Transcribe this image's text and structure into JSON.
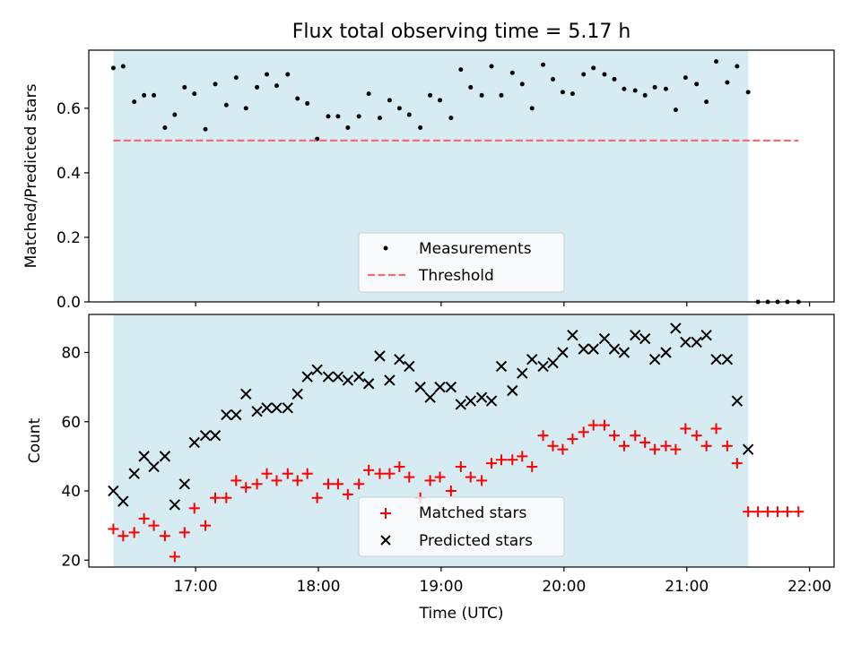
{
  "chart_data": [
    {
      "type": "scatter",
      "title": "Flux total observing time = 5.17 h",
      "ylabel": "Matched/Predicted stars",
      "xlabel": "",
      "xlim": [
        16.13,
        22.2
      ],
      "ylim": [
        0.0,
        0.78
      ],
      "yticks": [
        "0.0",
        "0.2",
        "0.4",
        "0.6"
      ],
      "ytick_values": [
        0.0,
        0.2,
        0.4,
        0.6
      ],
      "shaded_span": [
        16.33,
        21.5
      ],
      "legend_position": "lower center",
      "series": [
        {
          "name": "Measurements",
          "marker": "dot",
          "color": "#000000",
          "x": [
            16.33,
            16.41,
            16.5,
            16.58,
            16.66,
            16.75,
            16.83,
            16.91,
            16.99,
            17.08,
            17.16,
            17.25,
            17.33,
            17.41,
            17.5,
            17.58,
            17.66,
            17.75,
            17.83,
            17.91,
            17.99,
            18.08,
            18.16,
            18.24,
            18.33,
            18.41,
            18.5,
            18.58,
            18.66,
            18.74,
            18.83,
            18.91,
            18.99,
            19.08,
            19.16,
            19.24,
            19.33,
            19.41,
            19.49,
            19.58,
            19.66,
            19.74,
            19.83,
            19.91,
            19.99,
            20.07,
            20.16,
            20.24,
            20.33,
            20.41,
            20.49,
            20.58,
            20.66,
            20.74,
            20.83,
            20.91,
            20.99,
            21.08,
            21.16,
            21.24,
            21.33,
            21.41,
            21.5,
            21.58,
            21.66,
            21.74,
            21.82,
            21.91
          ],
          "y": [
            0.725,
            0.73,
            0.62,
            0.64,
            0.64,
            0.54,
            0.58,
            0.665,
            0.645,
            0.535,
            0.675,
            0.61,
            0.695,
            0.6,
            0.665,
            0.705,
            0.67,
            0.705,
            0.63,
            0.615,
            0.505,
            0.575,
            0.575,
            0.54,
            0.575,
            0.645,
            0.57,
            0.625,
            0.6,
            0.58,
            0.54,
            0.64,
            0.625,
            0.57,
            0.72,
            0.665,
            0.64,
            0.73,
            0.64,
            0.71,
            0.675,
            0.6,
            0.735,
            0.69,
            0.65,
            0.645,
            0.705,
            0.725,
            0.705,
            0.69,
            0.66,
            0.655,
            0.64,
            0.665,
            0.66,
            0.595,
            0.695,
            0.675,
            0.62,
            0.745,
            0.68,
            0.73,
            0.65,
            0.0,
            0.0,
            0.0,
            0.0,
            0.0
          ]
        },
        {
          "name": "Threshold",
          "style": "dashed",
          "color": "#f07070",
          "x": [
            16.33,
            21.91
          ],
          "y": [
            0.5,
            0.5
          ]
        }
      ]
    },
    {
      "type": "scatter",
      "title": "",
      "ylabel": "Count",
      "xlabel": "Time (UTC)",
      "xlim": [
        16.13,
        22.2
      ],
      "ylim": [
        18,
        91
      ],
      "yticks": [
        "20",
        "40",
        "60",
        "80"
      ],
      "ytick_values": [
        20,
        40,
        60,
        80
      ],
      "xticks": [
        "17:00",
        "18:00",
        "19:00",
        "20:00",
        "21:00",
        "22:00"
      ],
      "xtick_values": [
        17,
        18,
        19,
        20,
        21,
        22
      ],
      "shaded_span": [
        16.33,
        21.5
      ],
      "legend_position": "lower center",
      "series": [
        {
          "name": "Matched stars",
          "marker": "plus",
          "color": "#ff0000",
          "x": [
            16.33,
            16.41,
            16.5,
            16.58,
            16.66,
            16.75,
            16.83,
            16.91,
            16.99,
            17.08,
            17.16,
            17.25,
            17.33,
            17.41,
            17.5,
            17.58,
            17.66,
            17.75,
            17.83,
            17.91,
            17.99,
            18.08,
            18.16,
            18.24,
            18.33,
            18.41,
            18.5,
            18.58,
            18.66,
            18.74,
            18.83,
            18.91,
            18.99,
            19.08,
            19.16,
            19.24,
            19.33,
            19.41,
            19.49,
            19.58,
            19.66,
            19.74,
            19.83,
            19.91,
            19.99,
            20.07,
            20.16,
            20.24,
            20.33,
            20.41,
            20.49,
            20.58,
            20.66,
            20.74,
            20.83,
            20.91,
            20.99,
            21.08,
            21.16,
            21.24,
            21.33,
            21.41,
            21.5,
            21.58,
            21.66,
            21.74,
            21.82,
            21.91
          ],
          "y": [
            29,
            27,
            28,
            32,
            30,
            27,
            21,
            28,
            35,
            30,
            38,
            38,
            43,
            41,
            42,
            45,
            43,
            45,
            43,
            45,
            38,
            42,
            42,
            39,
            42,
            46,
            45,
            45,
            47,
            44,
            38,
            43,
            44,
            40,
            47,
            44,
            43,
            48,
            49,
            49,
            50,
            47,
            56,
            53,
            52,
            55,
            57,
            59,
            59,
            56,
            53,
            56,
            54,
            52,
            53,
            52,
            58,
            56,
            53,
            58,
            53,
            48,
            34,
            34,
            34,
            34,
            34,
            34
          ]
        },
        {
          "name": "Predicted stars",
          "marker": "x",
          "color": "#000000",
          "x": [
            16.33,
            16.41,
            16.5,
            16.58,
            16.66,
            16.75,
            16.83,
            16.91,
            16.99,
            17.08,
            17.16,
            17.25,
            17.33,
            17.41,
            17.5,
            17.58,
            17.66,
            17.75,
            17.83,
            17.91,
            17.99,
            18.08,
            18.16,
            18.24,
            18.33,
            18.41,
            18.5,
            18.58,
            18.66,
            18.74,
            18.83,
            18.91,
            18.99,
            19.08,
            19.16,
            19.24,
            19.33,
            19.41,
            19.49,
            19.58,
            19.66,
            19.74,
            19.83,
            19.91,
            19.99,
            20.07,
            20.16,
            20.24,
            20.33,
            20.41,
            20.49,
            20.58,
            20.66,
            20.74,
            20.83,
            20.91,
            20.99,
            21.08,
            21.16,
            21.24,
            21.33,
            21.41,
            21.5
          ],
          "y": [
            40,
            37,
            45,
            50,
            47,
            50,
            36,
            42,
            54,
            56,
            56,
            62,
            62,
            68,
            63,
            64,
            64,
            64,
            68,
            73,
            75,
            73,
            73,
            72,
            73,
            71,
            79,
            72,
            78,
            76,
            70,
            67,
            70,
            70,
            65,
            66,
            67,
            66,
            76,
            69,
            74,
            78,
            76,
            77,
            80,
            85,
            81,
            81,
            84,
            81,
            80,
            85,
            84,
            78,
            80,
            87,
            83,
            83,
            85,
            78,
            78,
            66,
            52
          ]
        }
      ]
    }
  ]
}
